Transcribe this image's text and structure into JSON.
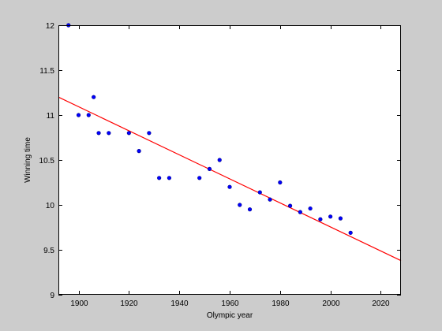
{
  "chart_data": {
    "type": "scatter",
    "title": "",
    "xlabel": "Olympic year",
    "ylabel": "Winning time",
    "xlim": [
      1892,
      2028
    ],
    "ylim": [
      9,
      12
    ],
    "xticks": [
      1900,
      1920,
      1940,
      1960,
      1980,
      2000,
      2020
    ],
    "yticks": [
      9,
      9.5,
      10,
      10.5,
      11,
      11.5,
      12
    ],
    "grid": false,
    "series": [
      {
        "kind": "points",
        "color": "#0000ff",
        "x": [
          1896,
          1900,
          1904,
          1906,
          1908,
          1912,
          1920,
          1924,
          1928,
          1932,
          1936,
          1948,
          1952,
          1956,
          1960,
          1964,
          1968,
          1972,
          1976,
          1980,
          1984,
          1988,
          1992,
          1996,
          2000,
          2004,
          2008
        ],
        "y": [
          12.0,
          11.0,
          11.0,
          11.2,
          10.8,
          10.8,
          10.8,
          10.6,
          10.8,
          10.3,
          10.3,
          10.3,
          10.4,
          10.5,
          10.2,
          10.0,
          9.95,
          10.14,
          10.06,
          10.25,
          9.99,
          9.92,
          9.96,
          9.84,
          9.87,
          9.85,
          9.69
        ]
      },
      {
        "kind": "fit-line",
        "color": "#ff0000",
        "x": [
          1892,
          2028
        ],
        "y": [
          11.2,
          9.38
        ]
      }
    ]
  }
}
